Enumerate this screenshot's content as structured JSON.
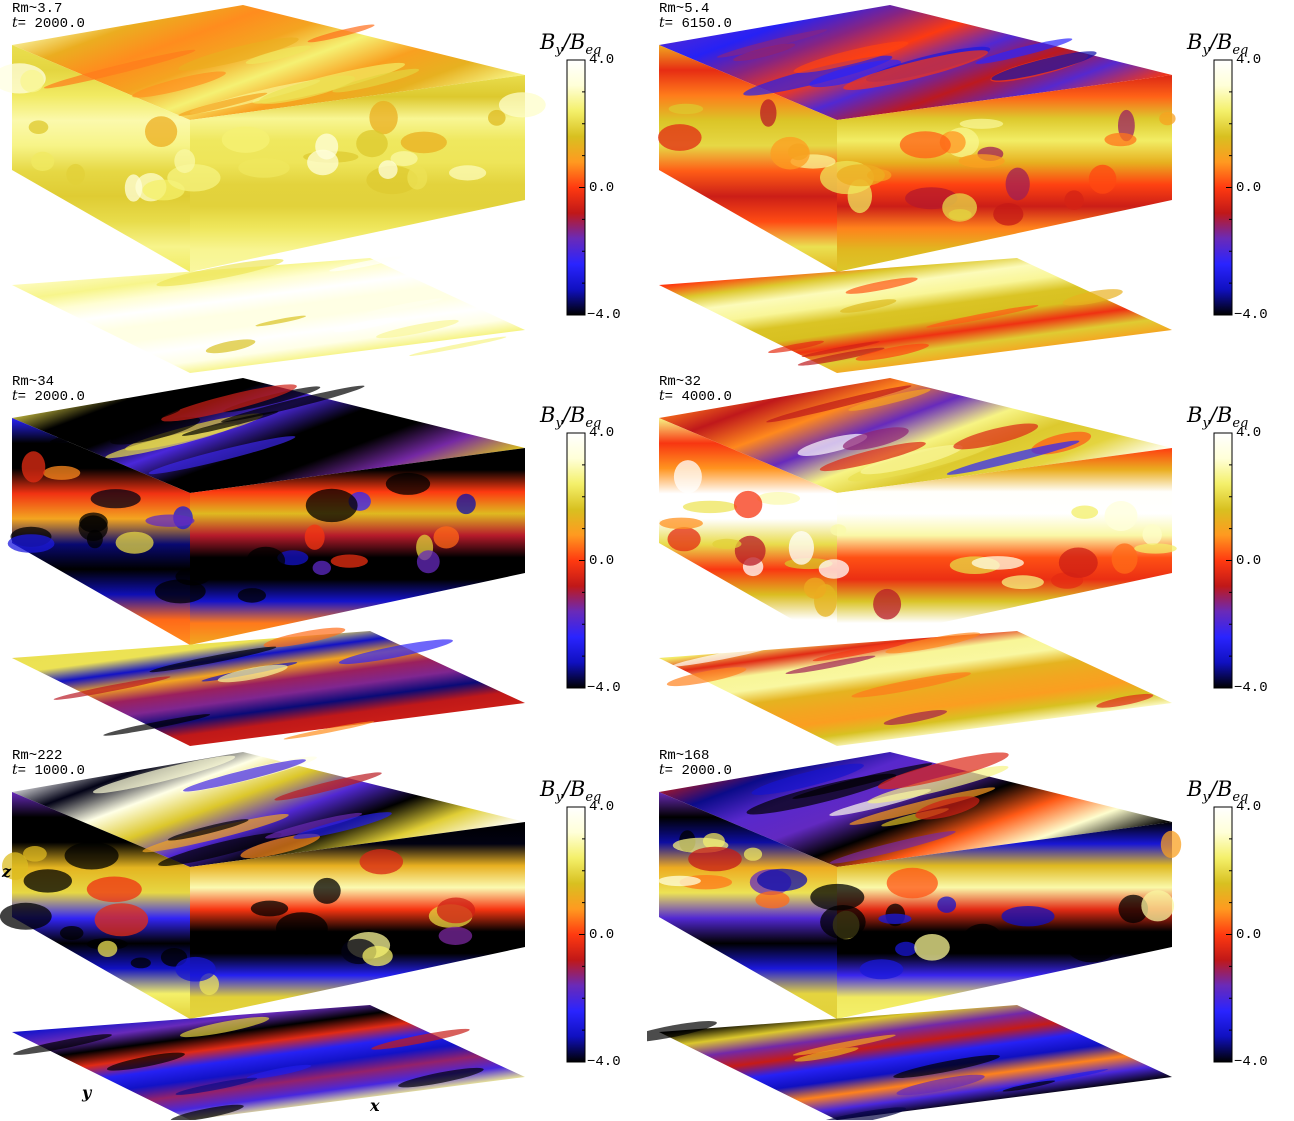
{
  "colormap": {
    "stops": [
      "#000000",
      "#1010c0",
      "#2a24ff",
      "#6a2ab8",
      "#c01818",
      "#ff3a10",
      "#ff9a20",
      "#d8c020",
      "#f4f06a",
      "#ffffd8",
      "#ffffff"
    ]
  },
  "colorbar": {
    "title_main": "B",
    "title_sub1": "y",
    "title_slash": "/B",
    "title_sub2": "eq",
    "tick_max": "4.0",
    "tick_mid": "0.0",
    "tick_min": "−4.0"
  },
  "axes": {
    "x": "x",
    "y": "y",
    "z": "z"
  },
  "panels": [
    {
      "rm": "Rm~3.7",
      "t_prefix": "t",
      "t_value": "= 2000.0",
      "top_level": 0.72,
      "side_level": 0.78,
      "bottom_level": 0.9,
      "mid_band": 0.05
    },
    {
      "rm": "Rm~5.4",
      "t_prefix": "t",
      "t_value": "= 6150.0",
      "top_level": 0.3,
      "side_level": 0.6,
      "bottom_level": 0.68,
      "mid_band": 0.15
    },
    {
      "rm": "Rm~34",
      "t_prefix": "t",
      "t_value": "= 2000.0",
      "top_level": 0.25,
      "side_level": 0.2,
      "bottom_level": 0.35,
      "mid_band": 0.45
    },
    {
      "rm": "Rm~32",
      "t_prefix": "t",
      "t_value": "= 4000.0",
      "top_level": 0.6,
      "side_level": 0.78,
      "bottom_level": 0.7,
      "mid_band": 0.3
    },
    {
      "rm": "Rm~222",
      "t_prefix": "t",
      "t_value": "= 1000.0",
      "top_level": 0.35,
      "side_level": 0.3,
      "bottom_level": 0.3,
      "mid_band": 0.55
    },
    {
      "rm": "Rm~168",
      "t_prefix": "t",
      "t_value": "= 2000.0",
      "top_level": 0.4,
      "side_level": 0.35,
      "bottom_level": 0.35,
      "mid_band": 0.5
    }
  ]
}
